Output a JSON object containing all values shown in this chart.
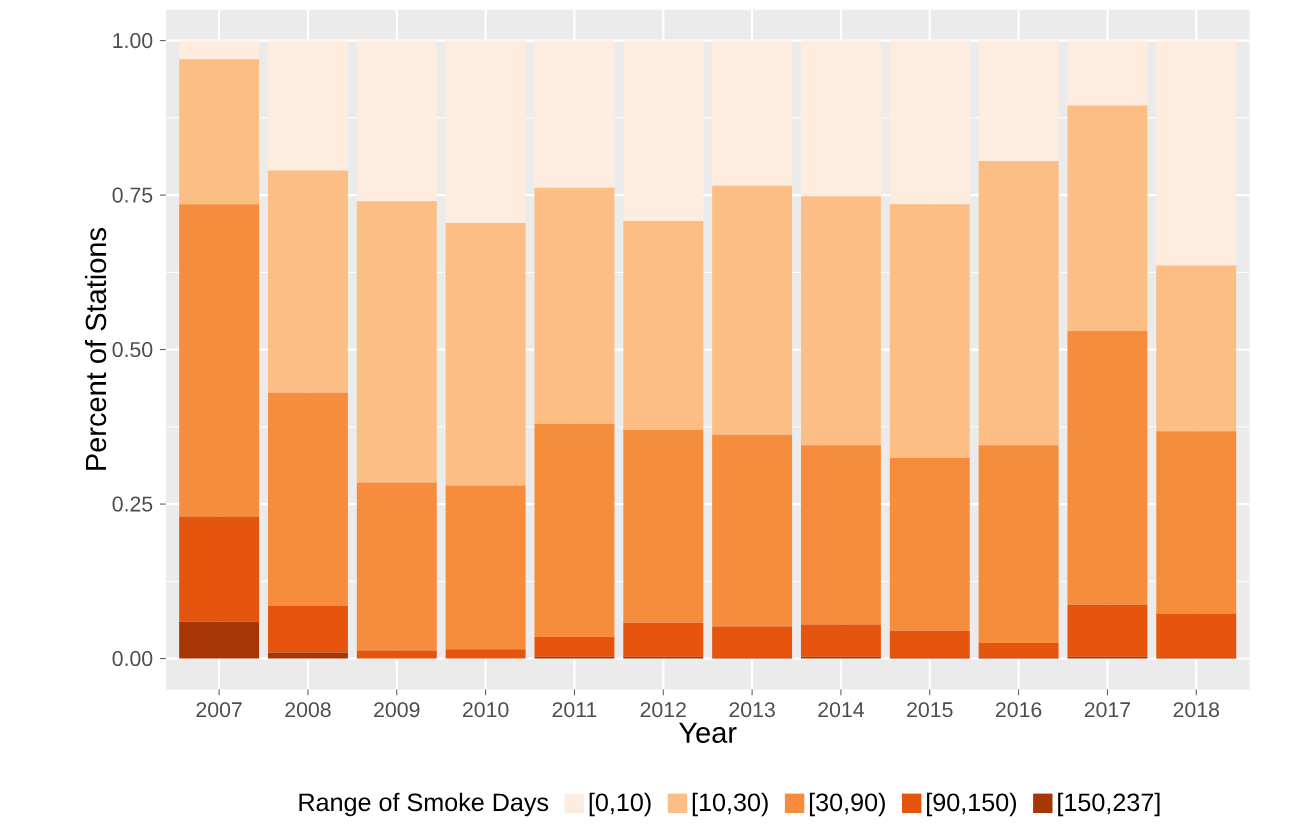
{
  "chart_data": {
    "type": "bar",
    "stacked": true,
    "xlabel": "Year",
    "ylabel": "Percent of Stations",
    "legend_title": "Range of Smoke Days",
    "legend": "bottom",
    "grid": true,
    "categories": [
      "2007",
      "2008",
      "2009",
      "2010",
      "2011",
      "2012",
      "2013",
      "2014",
      "2015",
      "2016",
      "2017",
      "2018"
    ],
    "ylim": [
      -0.05,
      1.05
    ],
    "yticks": [
      {
        "value": 0,
        "label": "0.00"
      },
      {
        "value": 0.25,
        "label": "0.25"
      },
      {
        "value": 0.5,
        "label": "0.50"
      },
      {
        "value": 0.75,
        "label": "0.75"
      },
      {
        "value": 1,
        "label": "1.00"
      }
    ],
    "series": [
      {
        "name": "[150,237]",
        "color": "#a63603",
        "values": [
          0.06,
          0.01,
          0,
          0,
          0.003,
          0.003,
          0.002,
          0.003,
          0.002,
          0.002,
          0.003,
          0.002
        ]
      },
      {
        "name": "[90,150)",
        "color": "#e6550d",
        "values": [
          0.17,
          0.075,
          0.013,
          0.015,
          0.032,
          0.055,
          0.05,
          0.052,
          0.043,
          0.023,
          0.084,
          0.071
        ]
      },
      {
        "name": "[30,90)",
        "color": "#f68d3c",
        "values": [
          0.505,
          0.345,
          0.272,
          0.265,
          0.345,
          0.312,
          0.31,
          0.29,
          0.28,
          0.32,
          0.443,
          0.295
        ]
      },
      {
        "name": "[10,30)",
        "color": "#fdbe85",
        "values": [
          0.235,
          0.36,
          0.455,
          0.425,
          0.382,
          0.338,
          0.403,
          0.403,
          0.41,
          0.46,
          0.365,
          0.268
        ]
      },
      {
        "name": "[0,10)",
        "color": "#feedde",
        "values": [
          0.03,
          0.21,
          0.26,
          0.295,
          0.238,
          0.292,
          0.235,
          0.252,
          0.265,
          0.195,
          0.105,
          0.364
        ]
      }
    ]
  }
}
